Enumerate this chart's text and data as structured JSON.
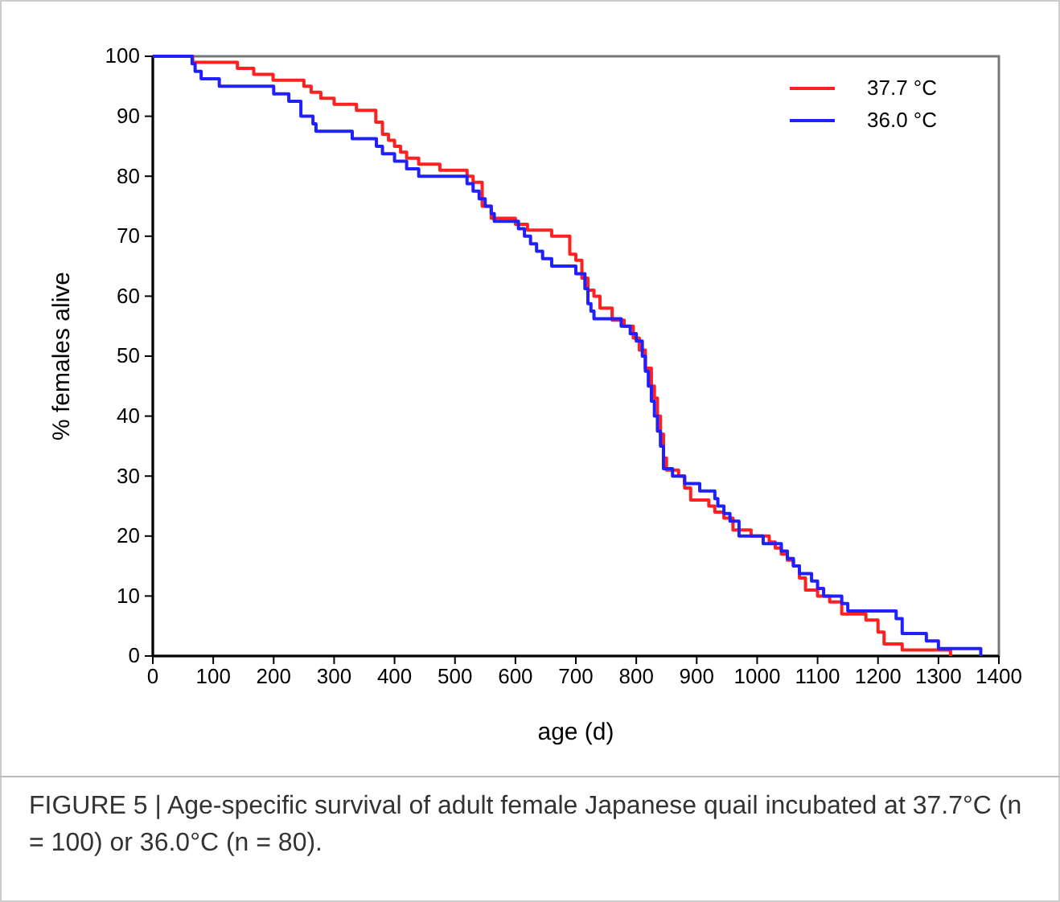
{
  "chart_data": {
    "type": "step",
    "xlabel": "age (d)",
    "ylabel": "% females alive",
    "xlim": [
      0,
      1400
    ],
    "ylim": [
      0,
      100
    ],
    "xticks": [
      0,
      100,
      200,
      300,
      400,
      500,
      600,
      700,
      800,
      900,
      1000,
      1100,
      1200,
      1300,
      1400
    ],
    "yticks": [
      0,
      10,
      20,
      30,
      40,
      50,
      60,
      70,
      80,
      90,
      100
    ],
    "grid": false,
    "legend": "top right",
    "marker": "none",
    "line_style": "solid",
    "annotations": [
      "FIGURE 5 | Age-specific survival of adult female Japanese quail incubated at 37.7°C (n = 100) or 36.0°C (n = 80)."
    ],
    "series": [
      {
        "name": "37.7 °C",
        "color": "#ff2020",
        "x": [
          0,
          66,
          140,
          167,
          199,
          250,
          262,
          278,
          300,
          337,
          369,
          380,
          390,
          400,
          410,
          420,
          440,
          475,
          520,
          530,
          545,
          560,
          600,
          620,
          660,
          690,
          700,
          710,
          720,
          730,
          740,
          760,
          780,
          795,
          805,
          815,
          825,
          830,
          835,
          840,
          845,
          850,
          870,
          880,
          890,
          920,
          930,
          945,
          960,
          990,
          1020,
          1030,
          1040,
          1050,
          1060,
          1070,
          1080,
          1100,
          1120,
          1140,
          1180,
          1200,
          1210,
          1240,
          1320
        ],
        "values": [
          100,
          99,
          98,
          97,
          96,
          95,
          94,
          93,
          92,
          91,
          89,
          87,
          86,
          85,
          84,
          83,
          82,
          81,
          80,
          79,
          75,
          73,
          72,
          71,
          70,
          67,
          66,
          63,
          61,
          60,
          58,
          56,
          55,
          53,
          51,
          48,
          45,
          43,
          40,
          37,
          33,
          31,
          30,
          28,
          26,
          25,
          24,
          23,
          21,
          20,
          19,
          18,
          17,
          16,
          15,
          13,
          11,
          10,
          9,
          7,
          6,
          4,
          2,
          1,
          0
        ]
      },
      {
        "name": "36.0 °C",
        "color": "#2020ff",
        "x": [
          0,
          65,
          70,
          80,
          110,
          200,
          225,
          245,
          265,
          270,
          330,
          370,
          380,
          400,
          420,
          440,
          520,
          530,
          540,
          550,
          560,
          565,
          605,
          615,
          625,
          635,
          645,
          660,
          700,
          715,
          720,
          725,
          730,
          775,
          790,
          800,
          810,
          815,
          820,
          825,
          830,
          835,
          840,
          845,
          860,
          880,
          905,
          930,
          935,
          945,
          955,
          970,
          1010,
          1040,
          1050,
          1060,
          1070,
          1090,
          1100,
          1110,
          1140,
          1150,
          1230,
          1240,
          1280,
          1300,
          1370
        ],
        "values": [
          100,
          98.75,
          97.5,
          96.25,
          95,
          93.75,
          92.5,
          90,
          88.75,
          87.5,
          86.25,
          85,
          83.75,
          82.5,
          81.25,
          80,
          78.75,
          77.5,
          76.25,
          75,
          73.75,
          72.5,
          71.25,
          70,
          68.75,
          67.5,
          66.25,
          65,
          63.75,
          61.25,
          58.75,
          57.5,
          56.25,
          55,
          53.75,
          52.5,
          50,
          47.5,
          45,
          42.5,
          40,
          37.5,
          35,
          31.25,
          30,
          28.75,
          27.5,
          26.25,
          25,
          23.75,
          22.5,
          20,
          18.75,
          17.5,
          16.25,
          15,
          13.75,
          12.5,
          11.25,
          10,
          8.75,
          7.5,
          6.25,
          3.75,
          2.5,
          1.25,
          0
        ]
      }
    ]
  }
}
